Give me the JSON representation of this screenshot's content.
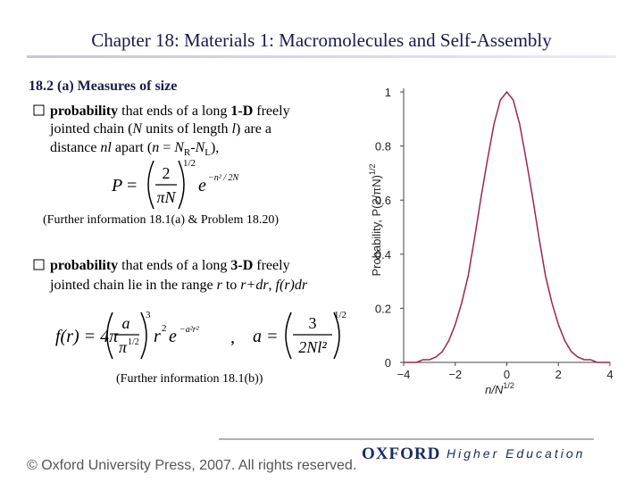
{
  "header": {
    "title": "Chapter 18: Materials 1: Macromolecules and Self-Assembly"
  },
  "section": "18.2 (a) Measures of size",
  "bullets": [
    {
      "lines": [
        [
          "probability",
          " that ends of a long ",
          "1-D",
          " freely"
        ],
        [
          "jointed chain (",
          "N",
          " units of length ",
          "l",
          ") are a"
        ],
        [
          "distance ",
          "nl",
          " apart (",
          "n",
          " = ",
          "N",
          "R",
          "-",
          "N",
          "L",
          "),"
        ]
      ]
    },
    {
      "lines": [
        [
          "probability",
          " that ends of a long ",
          "3-D",
          " freely"
        ],
        [
          "jointed chain lie in the range ",
          "r",
          " to ",
          "r+dr",
          ", ",
          "f(r)dr"
        ]
      ]
    }
  ],
  "notes": [
    "(Further information 18.1(a) & Problem 18.20)",
    "(Further information 18.1(b))"
  ],
  "equation_1": {
    "lhs": "P",
    "eq": "=",
    "num": "2",
    "den": "πN",
    "exp": "1/2",
    "e": "e",
    "e_exp": "−n² / 2N"
  },
  "equation_2": {
    "lhs": "f(r) = 4π",
    "num": "a",
    "den": "π",
    "den_exp": "1/2",
    "exp": "3",
    "r": "r",
    "r_exp": "2",
    "e": "e",
    "e_exp": "−a²r²",
    "comma": ",",
    "lhs2": "a =",
    "num2": "3",
    "den2": "2Nl²",
    "exp2": "1/2"
  },
  "chart_data": {
    "type": "line",
    "x": [
      -4,
      -3.75,
      -3.5,
      -3.25,
      -3,
      -2.75,
      -2.5,
      -2.25,
      -2,
      -1.75,
      -1.5,
      -1.25,
      -1,
      -0.75,
      -0.5,
      -0.25,
      0,
      0.25,
      0.5,
      0.75,
      1,
      1.25,
      1.5,
      1.75,
      2,
      2.25,
      2.5,
      2.75,
      3,
      3.25,
      3.5,
      3.75,
      4
    ],
    "series": [
      {
        "color": "#9b2557",
        "values": [
          0,
          0,
          0,
          0.01,
          0.01,
          0.02,
          0.04,
          0.08,
          0.14,
          0.22,
          0.32,
          0.46,
          0.61,
          0.75,
          0.88,
          0.97,
          1,
          0.97,
          0.88,
          0.75,
          0.61,
          0.46,
          0.32,
          0.22,
          0.14,
          0.08,
          0.04,
          0.02,
          0.01,
          0.01,
          0,
          0,
          0
        ]
      }
    ],
    "xlim": [
      -4,
      4
    ],
    "ylim": [
      0,
      1
    ],
    "xticks": [
      {
        "value": -4,
        "label": "−4"
      },
      {
        "value": -2,
        "label": "−2"
      },
      0,
      2,
      4
    ],
    "yticks": [
      0,
      0.2,
      0.4,
      0.6,
      0.8,
      1
    ],
    "x_label": {
      "text": "n/N",
      "sup": "1/2"
    },
    "y_label": {
      "text": "Probability, P(2/πN)",
      "sup": "1/2"
    }
  },
  "footer": {
    "copyright": "© Oxford University Press, 2007. All rights reserved.",
    "publisher": "OXFORD",
    "imprint": "Higher Education"
  }
}
